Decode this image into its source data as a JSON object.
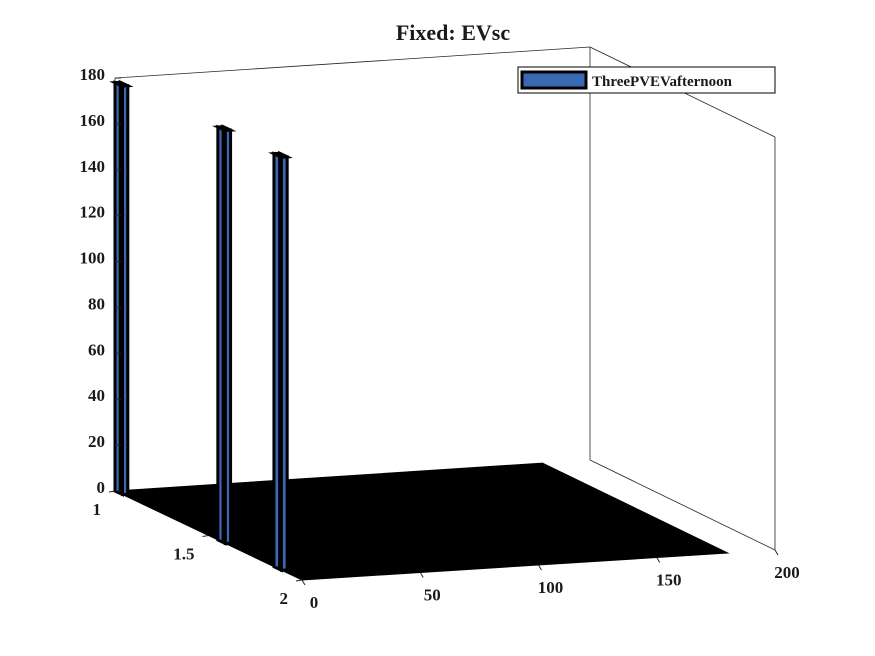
{
  "chart_data": {
    "type": "bar3",
    "title": "Fixed: EVsc",
    "legend": {
      "entries": [
        "ThreePVEVafternoon"
      ],
      "placement": "top-right"
    },
    "colors": {
      "bar_face": "#3b68b2",
      "edge": "#000000",
      "box": "#262626"
    },
    "z_axis": {
      "range": [
        0,
        180
      ],
      "ticks": [
        "0",
        "20",
        "40",
        "60",
        "80",
        "100",
        "120",
        "140",
        "160",
        "180"
      ]
    },
    "x_axis": {
      "range": [
        0,
        200
      ],
      "ticks": [
        "0",
        "50",
        "100",
        "150",
        "200"
      ]
    },
    "y_axis": {
      "range": [
        1,
        2
      ],
      "ticks": [
        "1",
        "1.5",
        "2"
      ]
    },
    "grid": false,
    "series": [
      {
        "y": 1,
        "x": [
          0,
          1,
          2,
          3
        ],
        "values": [
          178,
          0,
          0,
          0
        ]
      },
      {
        "y": 2,
        "x": [
          0,
          1,
          2,
          3
        ],
        "values": [
          180,
          180,
          0,
          0
        ]
      }
    ]
  }
}
